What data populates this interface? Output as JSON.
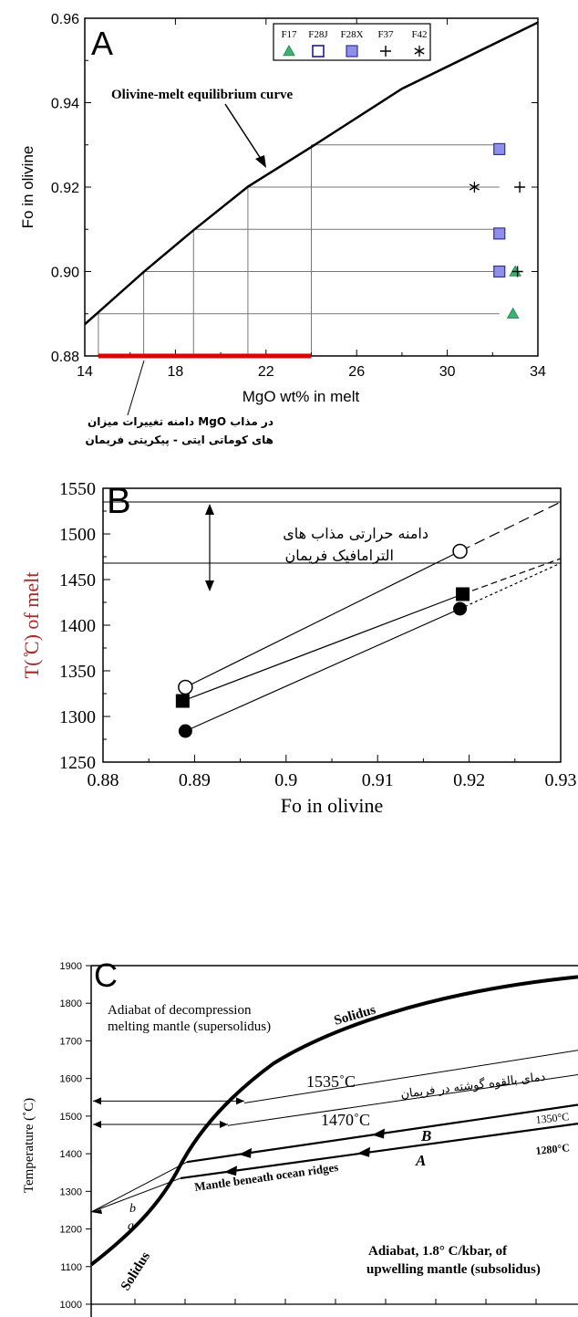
{
  "chart_data": [
    {
      "panel": "A",
      "type": "line",
      "panel_letter": "A",
      "xlabel": "MgO wt% in melt",
      "ylabel": "Fo in olivine",
      "xlim": [
        14,
        34
      ],
      "ylim": [
        0.88,
        0.96
      ],
      "xticks": [
        14,
        18,
        22,
        26,
        30,
        34
      ],
      "yticks": [
        0.88,
        0.9,
        0.92,
        0.94,
        0.96
      ],
      "tick_labels_x": [
        "14",
        "18",
        "22",
        "26",
        "30",
        "34"
      ],
      "tick_labels_y": [
        "0.88",
        "0.90",
        "0.92",
        "0.94",
        "0.96"
      ],
      "curve": {
        "label": "Olivine-melt equilibrium curve",
        "points": [
          [
            14,
            0.8875
          ],
          [
            16.6,
            0.8999
          ],
          [
            18.8,
            0.9098
          ],
          [
            21.2,
            0.9201
          ],
          [
            24.0,
            0.9295
          ],
          [
            28,
            0.9433
          ],
          [
            34,
            0.959
          ]
        ]
      },
      "guide_fo": [
        0.89,
        0.9,
        0.91,
        0.92,
        0.93
      ],
      "guide_mgo": [
        14.6,
        16.6,
        18.8,
        21.2,
        24.0
      ],
      "mgo_range_bar": [
        14.6,
        24.0
      ],
      "mgo_range_note": "دامنه تغییرات میزان MgO در مذاب های کوماتی ایتی - پیکریتی فریمان",
      "legend": {
        "placement": "top-right",
        "labels": [
          "F17",
          "F28J",
          "F28X",
          "F37",
          "F42"
        ],
        "symbols": [
          "triangle-green",
          "square-open",
          "square-blue",
          "plus",
          "asterisk"
        ]
      },
      "series": [
        {
          "name": "F17",
          "symbol": "triangle-green",
          "points": [
            [
              33.0,
              0.9
            ],
            [
              32.9,
              0.89
            ]
          ]
        },
        {
          "name": "F28X",
          "symbol": "square-blue",
          "points": [
            [
              32.3,
              0.929
            ],
            [
              32.3,
              0.909
            ],
            [
              32.3,
              0.9
            ]
          ]
        },
        {
          "name": "F37",
          "symbol": "plus",
          "points": [
            [
              33.2,
              0.92
            ],
            [
              33.1,
              0.9
            ]
          ]
        },
        {
          "name": "F42",
          "symbol": "asterisk",
          "points": [
            [
              31.2,
              0.92
            ]
          ]
        }
      ],
      "colors": {
        "triangle": "#3cb371",
        "square_fill": "#8f8fe8",
        "range_bar": "#e00000"
      }
    },
    {
      "panel": "B",
      "type": "line",
      "panel_letter": "B",
      "xlabel": "Fo in olivine",
      "ylabel": "T( ̊C) of melt",
      "xlim": [
        0.88,
        0.93
      ],
      "ylim": [
        1250,
        1550
      ],
      "xticks": [
        0.88,
        0.89,
        0.9,
        0.91,
        0.92,
        0.93
      ],
      "yticks": [
        1250,
        1300,
        1350,
        1400,
        1450,
        1500,
        1550
      ],
      "tick_labels_x": [
        "0.88",
        "0.89",
        "0.9",
        "0.91",
        "0.92",
        "0.93"
      ],
      "tick_labels_y": [
        "1250",
        "1300",
        "1350",
        "1400",
        "1450",
        "1500",
        "1550"
      ],
      "hlines": [
        1535,
        1468
      ],
      "range_note": "دامنه حرارتی مذاب های الترامافیک فریمان",
      "series": [
        {
          "symbol": "circle-open",
          "points": [
            [
              0.889,
              1332
            ],
            [
              0.919,
              1481
            ]
          ],
          "extension": [
            [
              0.919,
              1481
            ],
            [
              0.93,
              1535
            ]
          ]
        },
        {
          "symbol": "square-filled",
          "points": [
            [
              0.8887,
              1317
            ],
            [
              0.9193,
              1434
            ]
          ],
          "extension": [
            [
              0.9193,
              1434
            ],
            [
              0.93,
              1473
            ]
          ]
        },
        {
          "symbol": "circle-filled",
          "points": [
            [
              0.889,
              1284
            ],
            [
              0.919,
              1418
            ]
          ],
          "extension": [
            [
              0.919,
              1418
            ],
            [
              0.93,
              1468
            ]
          ]
        }
      ]
    },
    {
      "panel": "C",
      "type": "line",
      "panel_letter": "C",
      "ylabel": "Temperature (˚C)",
      "ylim": [
        1000,
        1900
      ],
      "yticks": [
        1000,
        1100,
        1200,
        1300,
        1400,
        1500,
        1600,
        1700,
        1800,
        1900
      ],
      "tick_labels_y": [
        "1000",
        "1100",
        "1200",
        "1300",
        "1400",
        "1500",
        "1600",
        "1700",
        "1800",
        "1900"
      ],
      "labels": {
        "solidus_upper": "Solidus",
        "solidus_lower": "Solidus",
        "adiabat_super": [
          "Adiabat of decompression",
          "melting mantle (supersolidus)"
        ],
        "adiabat_sub": [
          "Adiabat, 1.8° C/kbar, of",
          "upwelling mantle (subsolidus)"
        ],
        "t1535": "1535˚C",
        "t1470": "1470˚C",
        "potential_note": "دمای بالقوه گوشته در فریمان",
        "ridges": "Mantle beneath ocean ridges",
        "b_label": "B",
        "a_label": "A",
        "t1350": "1350°C",
        "t1280": "1280°C",
        "small_b": "b",
        "small_a": "a"
      }
    }
  ]
}
